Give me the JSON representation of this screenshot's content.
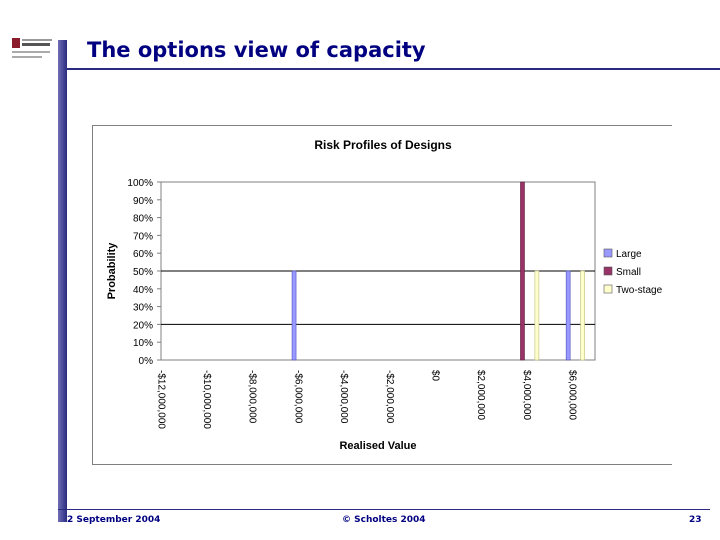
{
  "slide": {
    "title": "The options view of capacity",
    "footer_date": "2 September 2004",
    "footer_copyright": "© Scholtes 2004",
    "page_number": "23"
  },
  "colors": {
    "large": "#9999ff",
    "small": "#993366",
    "two_stage": "#ffffcc",
    "title": "#000080",
    "accent_bar": "#2a2a80"
  },
  "chart_data": {
    "type": "bar",
    "title": "Risk Profiles of Designs",
    "xlabel": "Realised Value",
    "ylabel": "Probability",
    "ylim": [
      0,
      1
    ],
    "y_ticks": [
      "0%",
      "10%",
      "20%",
      "30%",
      "40%",
      "50%",
      "60%",
      "70%",
      "80%",
      "90%",
      "100%"
    ],
    "x_ticks": [
      "-$12,000,000",
      "-$10,000,000",
      "-$8,000,000",
      "-$6,000,000",
      "-$4,000,000",
      "-$2,000,000",
      "$0",
      "$2,000,000",
      "$4,000,000",
      "$6,000,000"
    ],
    "x_range": [
      -12000000,
      7000000
    ],
    "grid": "horizontal gridlines at 20% and 50%",
    "legend_position": "right",
    "series": [
      {
        "name": "Large",
        "points": [
          {
            "x": -6000000,
            "y": 0.5
          },
          {
            "x": 6000000,
            "y": 0.5
          }
        ]
      },
      {
        "name": "Small",
        "points": [
          {
            "x": 4000000,
            "y": 1.0
          }
        ]
      },
      {
        "name": "Two-stage",
        "points": [
          {
            "x": 4500000,
            "y": 0.5
          },
          {
            "x": 6500000,
            "y": 0.5
          }
        ]
      }
    ]
  }
}
